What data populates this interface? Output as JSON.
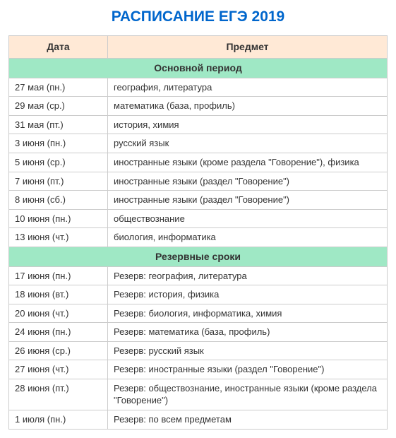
{
  "title": "РАСПИСАНИЕ ЕГЭ 2019",
  "title_color": "#0066cc",
  "header_bg": "#ffe9d6",
  "section_bg": "#9fe8c5",
  "border_color": "#cccccc",
  "text_color": "#333333",
  "columns": {
    "date": "Дата",
    "subject": "Предмет"
  },
  "sections": [
    {
      "name": "Основной период",
      "rows": [
        {
          "date": "27 мая (пн.)",
          "subject": "география, литература"
        },
        {
          "date": "29 мая (ср.)",
          "subject": "математика (база, профиль)"
        },
        {
          "date": "31 мая (пт.)",
          "subject": "история, химия"
        },
        {
          "date": "3 июня (пн.)",
          "subject": "русский язык"
        },
        {
          "date": "5 июня (ср.)",
          "subject": "иностранные языки (кроме раздела \"Говорение\"), физика"
        },
        {
          "date": "7 июня (пт.)",
          "subject": "иностранные языки (раздел \"Говорение\")"
        },
        {
          "date": "8 июня (сб.)",
          "subject": "иностранные языки (раздел \"Говорение\")"
        },
        {
          "date": "10 июня (пн.)",
          "subject": "обществознание"
        },
        {
          "date": "13 июня (чт.)",
          "subject": "биология, информатика"
        }
      ]
    },
    {
      "name": "Резервные сроки",
      "rows": [
        {
          "date": "17 июня (пн.)",
          "subject": "Резерв: география, литература"
        },
        {
          "date": "18 июня (вт.)",
          "subject": "Резерв: история, физика"
        },
        {
          "date": "20 июня (чт.)",
          "subject": "Резерв: биология, информатика, химия"
        },
        {
          "date": "24 июня (пн.)",
          "subject": "Резерв: математика (база, профиль)"
        },
        {
          "date": "26 июня (ср.)",
          "subject": "Резерв: русский язык"
        },
        {
          "date": "27 июня (чт.)",
          "subject": "Резерв: иностранные языки (раздел \"Говорение\")"
        },
        {
          "date": "28 июня (пт.)",
          "subject": "Резерв: обществознание, иностранные языки (кроме раздела \"Говорение\")"
        },
        {
          "date": "1 июля (пн.)",
          "subject": "Резерв: по всем предметам"
        }
      ]
    }
  ]
}
